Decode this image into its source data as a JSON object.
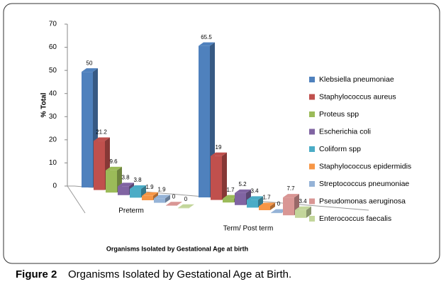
{
  "chart_data": {
    "type": "bar3d",
    "title": "Organisms Isolated by Gestational Age at birth",
    "y_label": "% Total",
    "categories": [
      "Preterm",
      "Term/ Post term"
    ],
    "ylim": [
      0,
      70
    ],
    "yticks": [
      0,
      10,
      20,
      30,
      40,
      50,
      60,
      70
    ],
    "legend": "right",
    "series": [
      {
        "name": "Klebsiella pneumoniae",
        "color": "#4f81bd",
        "values": [
          50,
          65.5
        ]
      },
      {
        "name": "Staphylococcus aureus",
        "color": "#c0504d",
        "values": [
          21.2,
          19
        ]
      },
      {
        "name": "Proteus spp",
        "color": "#9bbb59",
        "values": [
          9.6,
          1.7
        ]
      },
      {
        "name": "Escherichia coli",
        "color": "#8064a2",
        "values": [
          3.8,
          5.2
        ]
      },
      {
        "name": "Coliform spp",
        "color": "#4bacc6",
        "values": [
          3.8,
          3.4
        ]
      },
      {
        "name": "Staphylococcus epidermidis",
        "color": "#f79646",
        "values": [
          1.9,
          1.7
        ]
      },
      {
        "name": "Streptococcus pneumoniae",
        "color": "#95b3d7",
        "values": [
          1.9,
          0
        ]
      },
      {
        "name": "Pseudomonas aeruginosa",
        "color": "#d99694",
        "values": [
          0,
          7.7
        ]
      },
      {
        "name": "Enterococcus faecalis",
        "color": "#c3d69b",
        "values": [
          0,
          3.4
        ]
      }
    ]
  },
  "caption": {
    "label": "Figure 2",
    "text": "Organisms Isolated by Gestational Age at Birth."
  }
}
